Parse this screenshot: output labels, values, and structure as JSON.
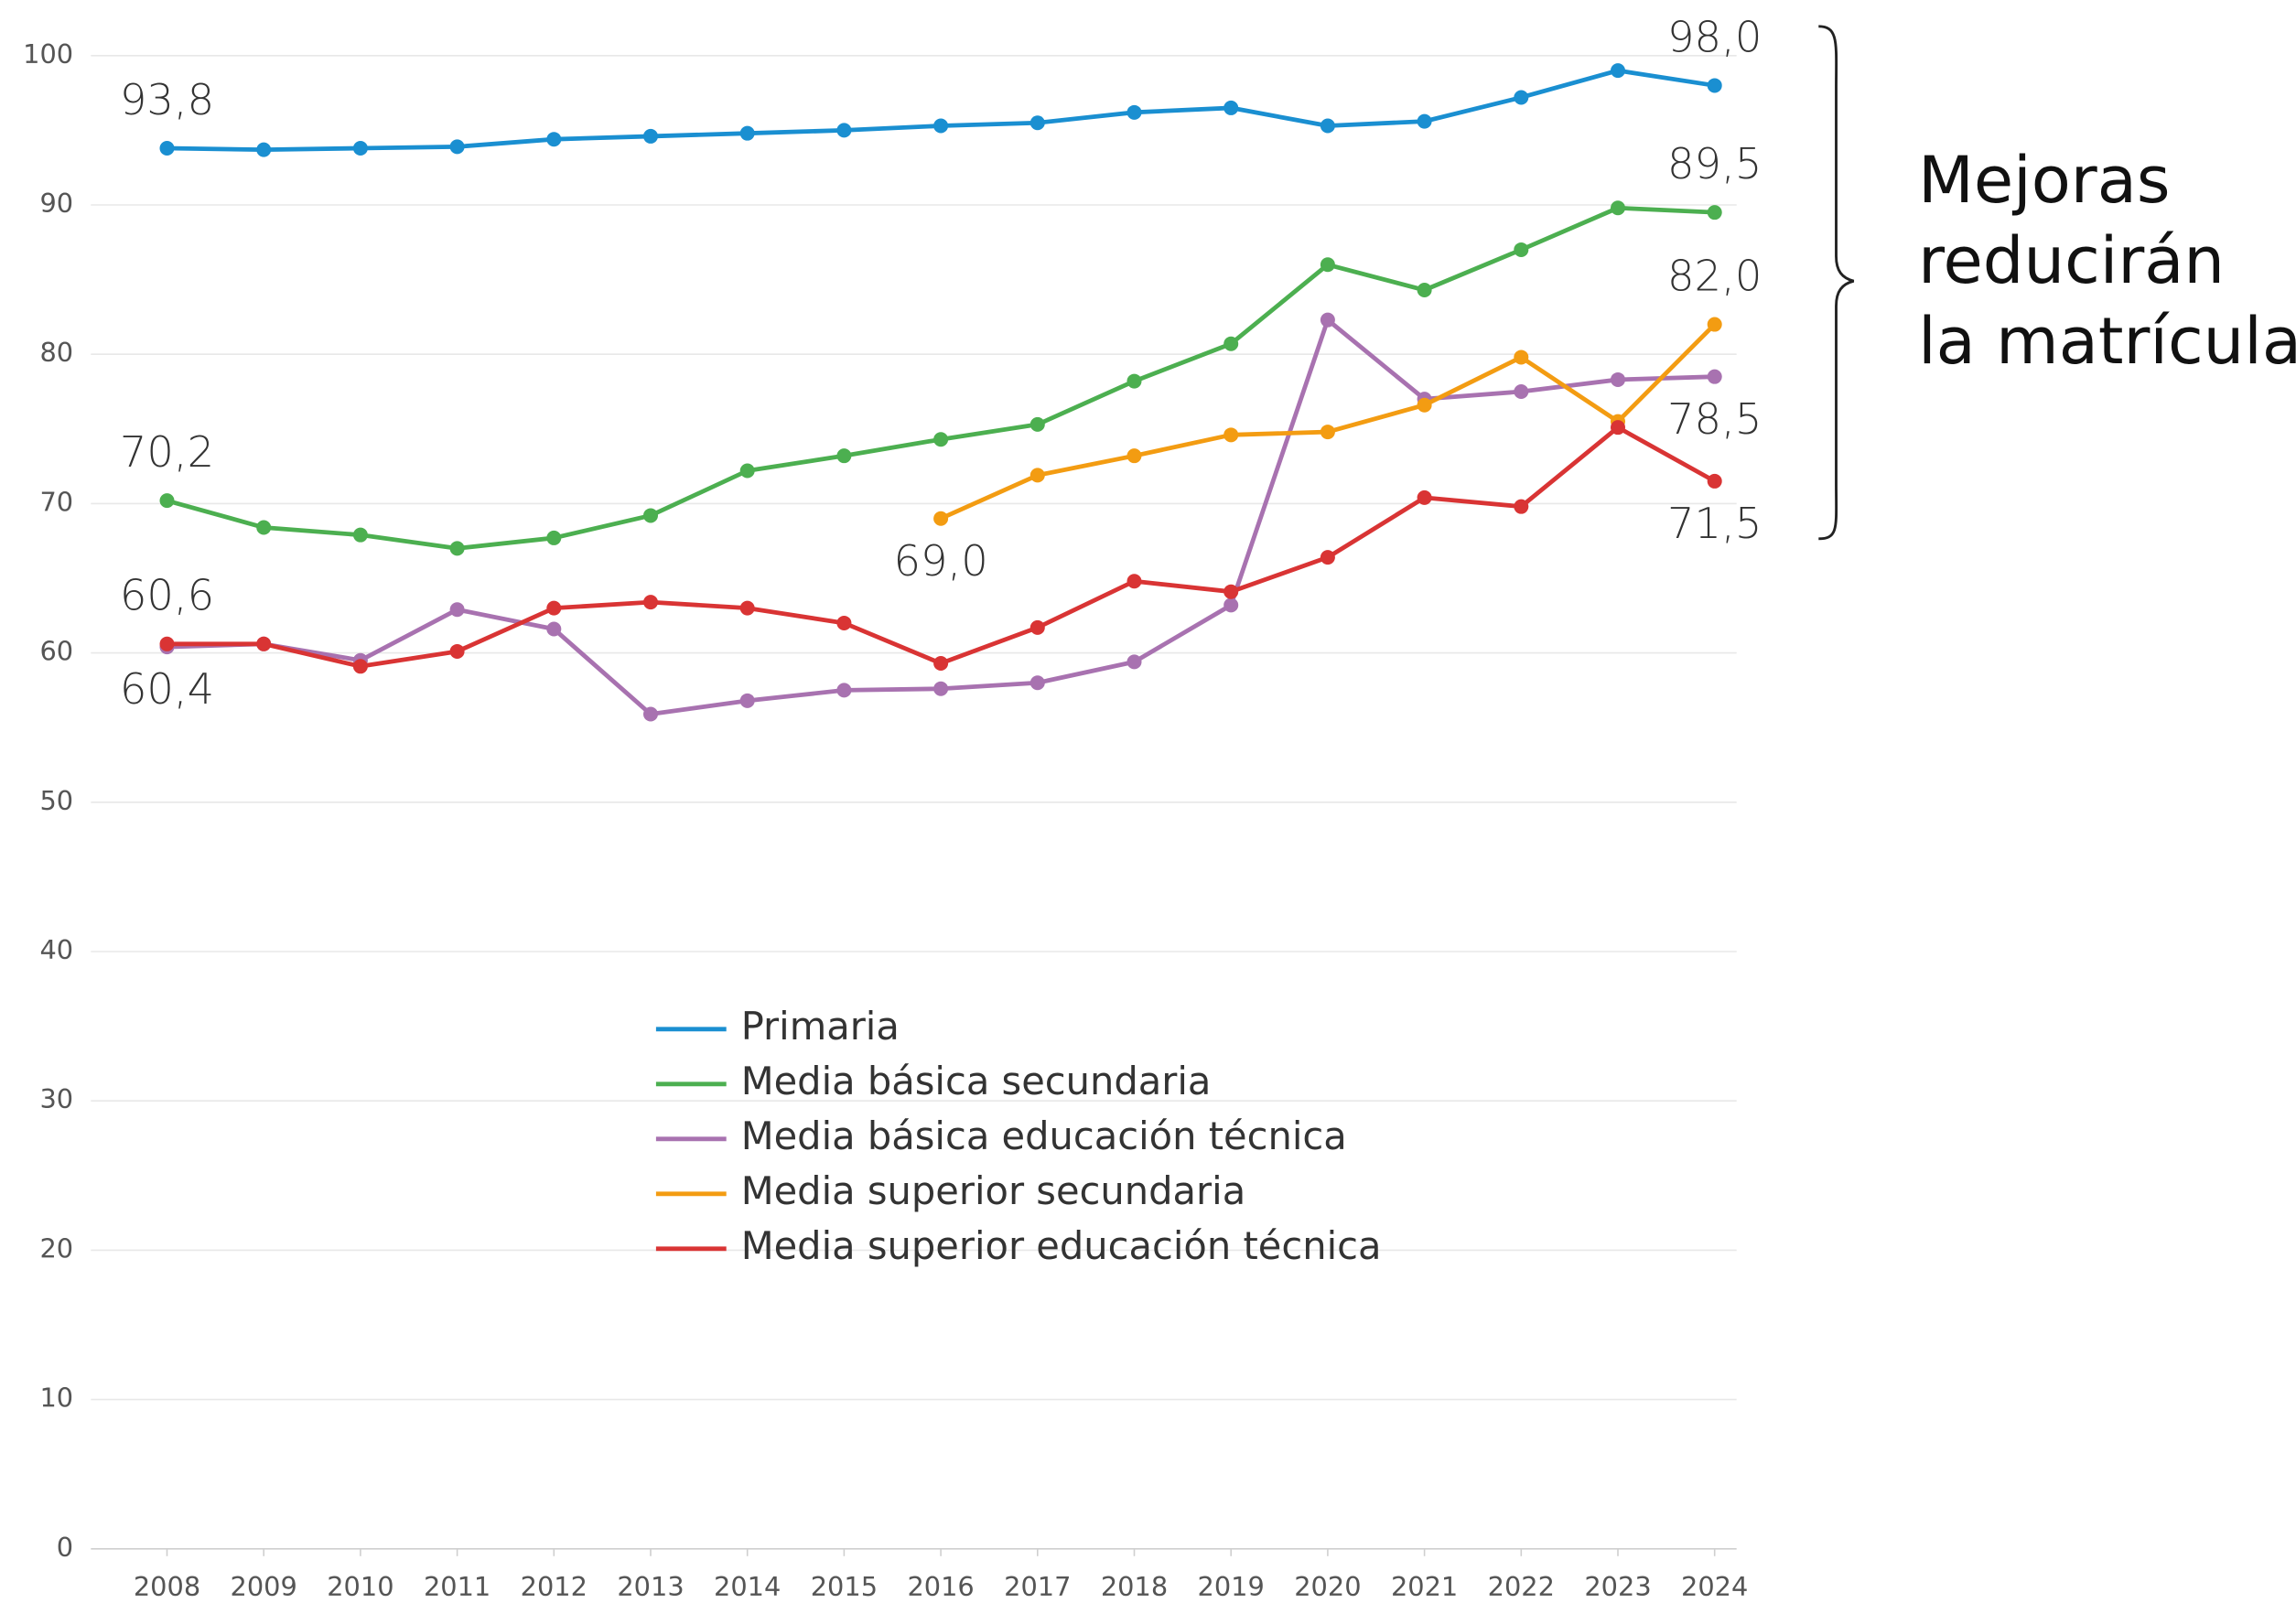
{
  "chart_data": {
    "type": "line",
    "categories": [
      "2008",
      "2009",
      "2010",
      "2011",
      "2012",
      "2013",
      "2014",
      "2015",
      "2016",
      "2017",
      "2018",
      "2019",
      "2020",
      "2021",
      "2022",
      "2023",
      "2024"
    ],
    "ylim": [
      0,
      100
    ],
    "yticks": [
      0,
      10,
      20,
      30,
      40,
      50,
      60,
      70,
      80,
      90,
      100
    ],
    "grid": true,
    "series": [
      {
        "name": "Primaria",
        "color": "#1a8fd1",
        "values": [
          93.8,
          93.7,
          93.8,
          93.9,
          94.4,
          94.6,
          94.8,
          95.0,
          95.3,
          95.5,
          96.2,
          96.5,
          95.3,
          95.6,
          97.2,
          99.0,
          98.0
        ],
        "value_labels": [
          "93,8",
          null,
          null,
          null,
          null,
          null,
          null,
          null,
          null,
          null,
          null,
          null,
          null,
          null,
          null,
          null,
          "98,0"
        ]
      },
      {
        "name": "Media básica secundaria",
        "color": "#4caf50",
        "values": [
          70.2,
          68.4,
          67.9,
          67.0,
          67.7,
          69.2,
          72.2,
          73.2,
          74.3,
          75.3,
          78.2,
          80.7,
          86.0,
          84.3,
          87.0,
          89.8,
          89.5
        ],
        "value_labels": [
          "70,2",
          null,
          null,
          null,
          null,
          null,
          null,
          null,
          null,
          null,
          null,
          null,
          null,
          null,
          null,
          null,
          "89,5"
        ]
      },
      {
        "name": "Media básica educación técnica",
        "color": "#a872b0",
        "values": [
          60.4,
          60.6,
          59.5,
          62.9,
          61.6,
          55.9,
          56.8,
          57.5,
          57.6,
          58.0,
          59.4,
          63.2,
          82.3,
          77.0,
          77.5,
          78.3,
          78.5
        ],
        "value_labels": [
          "60,4",
          null,
          null,
          null,
          null,
          null,
          null,
          null,
          null,
          null,
          null,
          null,
          null,
          null,
          null,
          null,
          "78,5"
        ]
      },
      {
        "name": "Media superior secundaria",
        "color": "#f39c12",
        "values": [
          null,
          null,
          null,
          null,
          null,
          null,
          null,
          null,
          69.0,
          71.9,
          73.2,
          74.6,
          74.8,
          76.6,
          79.8,
          75.5,
          82.0
        ],
        "value_labels": [
          null,
          null,
          null,
          null,
          null,
          null,
          null,
          null,
          "69,0",
          null,
          null,
          null,
          null,
          null,
          null,
          null,
          "82,0"
        ]
      },
      {
        "name": "Media superior educación técnica",
        "color": "#d93434",
        "values": [
          60.6,
          60.6,
          59.1,
          60.1,
          63.0,
          63.4,
          63.0,
          62.0,
          59.3,
          61.7,
          64.8,
          64.1,
          66.4,
          70.4,
          69.8,
          75.1,
          71.5
        ],
        "value_labels": [
          "60,6",
          null,
          null,
          null,
          null,
          null,
          null,
          null,
          null,
          null,
          null,
          null,
          null,
          null,
          null,
          null,
          "71,5"
        ]
      }
    ],
    "annotation_lines": [
      "Mejoras",
      "reducirán",
      "la matrícula"
    ]
  }
}
